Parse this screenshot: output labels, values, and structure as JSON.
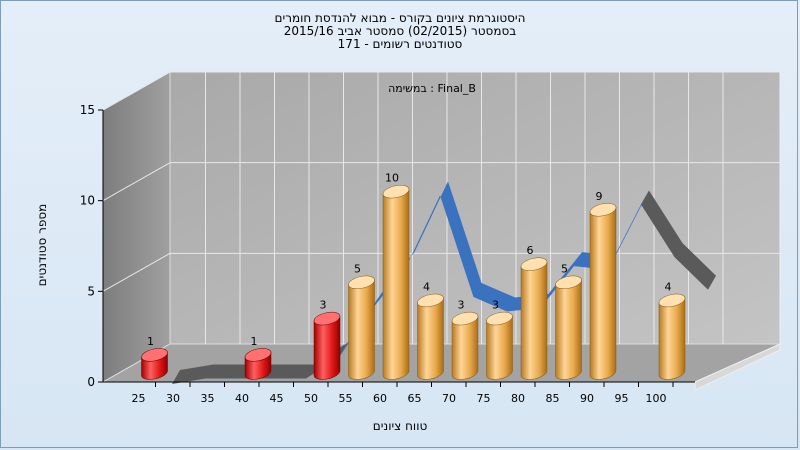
{
  "chart_data": {
    "type": "bar",
    "title_lines": [
      "היסטוגרמת ציונים בקורס - מבוא להנדסת חומרים",
      "בסמסטר  (02/2015)  סמסטר אביב 2015/16",
      "סטודנטים רשומים - 171"
    ],
    "inner_label": "במשימה : Final_B",
    "xlabel": "טווח ציונים",
    "ylabel": "מספר סטודנטים",
    "ylim": [
      0,
      15
    ],
    "yticks": [
      "0",
      "5",
      "10",
      "15"
    ],
    "categories": [
      "25",
      "30",
      "35",
      "40",
      "45",
      "50",
      "55",
      "60",
      "65",
      "70",
      "75",
      "80",
      "85",
      "90",
      "95",
      "100"
    ],
    "values": [
      1,
      0,
      0,
      1,
      0,
      3,
      5,
      10,
      4,
      3,
      3,
      6,
      5,
      9,
      0,
      4
    ],
    "bar_status": [
      "fail",
      "none",
      "none",
      "fail",
      "none",
      "fail",
      "pass",
      "pass",
      "pass",
      "pass",
      "pass",
      "pass",
      "pass",
      "pass",
      "none",
      "pass"
    ],
    "trend_ribbon": [
      0,
      0.3,
      0.3,
      0.3,
      0.3,
      1.5,
      4.2,
      6.5,
      10.4,
      4.8,
      4,
      4.2,
      6.5,
      6.3,
      9.9,
      7,
      5.2
    ],
    "grid": true,
    "colors": {
      "fail": "#e01818",
      "pass": "#f0b050",
      "ribbon_main": "#3a72c0",
      "ribbon_tail": "#5a5a5a",
      "wall": "#b9b9b9",
      "side_wall": "#9a9a9a",
      "floor": "#a8a8a8"
    }
  }
}
